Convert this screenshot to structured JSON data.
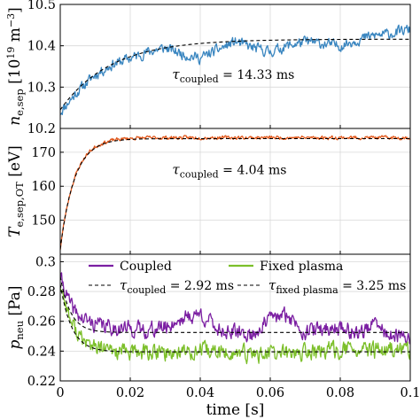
{
  "xaxis": {
    "label": "time [s]",
    "range": [
      0,
      0.1
    ],
    "ticks": [
      0,
      0.02,
      0.04,
      0.06,
      0.08,
      0.1
    ],
    "tick_labels": [
      "0",
      "0.02",
      "0.04",
      "0.06",
      "0.08",
      "0.1"
    ]
  },
  "chart_data": [
    {
      "type": "line",
      "ylabel": "n_e,sep [10^19 m^-3]",
      "ylabel_parts": {
        "sym": "n",
        "sub": "e,sep",
        "unit_pre": "[10",
        "unit_exp1": "19",
        "unit_mid": " m",
        "unit_exp2": "−3",
        "unit_post": "]"
      },
      "ylim": [
        10.2,
        10.5
      ],
      "grid": true,
      "yticks": [
        10.2,
        10.3,
        10.4,
        10.5
      ],
      "ytick_labels": [
        "10.2",
        "10.3",
        "10.4",
        "10.5"
      ],
      "series": [
        {
          "color": "#3a86c0",
          "noisy": true,
          "noise": 0.011,
          "seed": 11,
          "x": [
            0,
            0.005,
            0.01,
            0.015,
            0.02,
            0.025,
            0.03,
            0.035,
            0.04,
            0.045,
            0.05,
            0.055,
            0.06,
            0.065,
            0.07,
            0.075,
            0.08,
            0.085,
            0.09,
            0.095,
            0.1
          ],
          "y": [
            10.24,
            10.29,
            10.33,
            10.355,
            10.37,
            10.385,
            10.395,
            10.38,
            10.37,
            10.39,
            10.41,
            10.395,
            10.385,
            10.4,
            10.41,
            10.405,
            10.4,
            10.415,
            10.425,
            10.43,
            10.44
          ]
        },
        {
          "color": "#000000",
          "dashed": true,
          "tau": 0.01433,
          "y0": 10.245,
          "yinf": 10.416
        }
      ],
      "annotation": {
        "sym": "τ",
        "sub": "coupled",
        "text": " = 14.33 ms",
        "x": 0.032,
        "y": 10.32
      }
    },
    {
      "type": "line",
      "ylabel": "T_e,sep,OT [eV]",
      "ylabel_parts": {
        "sym": "T",
        "sub": "e,sep,OT",
        "unit": " [eV]"
      },
      "ylim": [
        140,
        177
      ],
      "grid": true,
      "yticks": [
        150,
        160,
        170
      ],
      "ytick_labels": [
        "150",
        "160",
        "170"
      ],
      "series": [
        {
          "color": "#e0581c",
          "noisy": true,
          "noise": 0.45,
          "seed": 23,
          "tau": 0.00404,
          "y0": 141.5,
          "yinf": 174.3
        },
        {
          "color": "#000000",
          "dashed": true,
          "tau": 0.00404,
          "y0": 141.5,
          "yinf": 174.0
        }
      ],
      "annotation": {
        "sym": "τ",
        "sub": "coupled",
        "text": " = 4.04 ms",
        "x": 0.032,
        "y": 163.6
      }
    },
    {
      "type": "line",
      "ylabel": "p_neu [Pa]",
      "ylabel_parts": {
        "sym": "p",
        "sub": "neu",
        "unit": " [Pa]"
      },
      "ylim": [
        0.22,
        0.305
      ],
      "grid": true,
      "yticks": [
        0.22,
        0.24,
        0.26,
        0.28,
        0.3
      ],
      "ytick_labels": [
        "0.22",
        "0.24",
        "0.26",
        "0.28",
        "0.3"
      ],
      "series": [
        {
          "name": "Coupled",
          "color": "#7b1fa2",
          "noisy": true,
          "noise": 0.0045,
          "seed": 41,
          "x": [
            0,
            0.003,
            0.006,
            0.01,
            0.015,
            0.02,
            0.025,
            0.03,
            0.035,
            0.04,
            0.045,
            0.05,
            0.055,
            0.06,
            0.065,
            0.07,
            0.075,
            0.08,
            0.085,
            0.09,
            0.095,
            0.1
          ],
          "y": [
            0.29,
            0.27,
            0.262,
            0.258,
            0.256,
            0.255,
            0.254,
            0.256,
            0.262,
            0.265,
            0.255,
            0.252,
            0.251,
            0.262,
            0.264,
            0.253,
            0.255,
            0.256,
            0.252,
            0.258,
            0.249,
            0.249
          ]
        },
        {
          "name": "Fixed plasma",
          "color": "#7cbf2a",
          "noisy": true,
          "noise": 0.0048,
          "seed": 77,
          "x": [
            0,
            0.003,
            0.006,
            0.01,
            0.015,
            0.02,
            0.03,
            0.04,
            0.05,
            0.06,
            0.07,
            0.08,
            0.09,
            0.1
          ],
          "y": [
            0.285,
            0.26,
            0.248,
            0.242,
            0.24,
            0.239,
            0.239,
            0.24,
            0.238,
            0.238,
            0.239,
            0.241,
            0.24,
            0.241
          ]
        },
        {
          "color": "#000000",
          "dashed": true,
          "tau": 0.00292,
          "y0": 0.29,
          "yinf": 0.2525
        },
        {
          "color": "#000000",
          "dashed": true,
          "tau": 0.00325,
          "y0": 0.285,
          "yinf": 0.2395
        }
      ],
      "legend": {
        "placement": "top",
        "items": [
          {
            "kind": "line",
            "color": "#7b1fa2",
            "label": "Coupled"
          },
          {
            "kind": "line",
            "color": "#7cbf2a",
            "label": "Fixed plasma"
          },
          {
            "kind": "dashed",
            "color": "#000000",
            "sym": "τ",
            "sub": "coupled",
            "text": " = 2.92 ms"
          },
          {
            "kind": "dashed",
            "color": "#000000",
            "sym": "τ",
            "sub": "fixed plasma",
            "text": " = 3.25 ms"
          }
        ]
      }
    }
  ]
}
